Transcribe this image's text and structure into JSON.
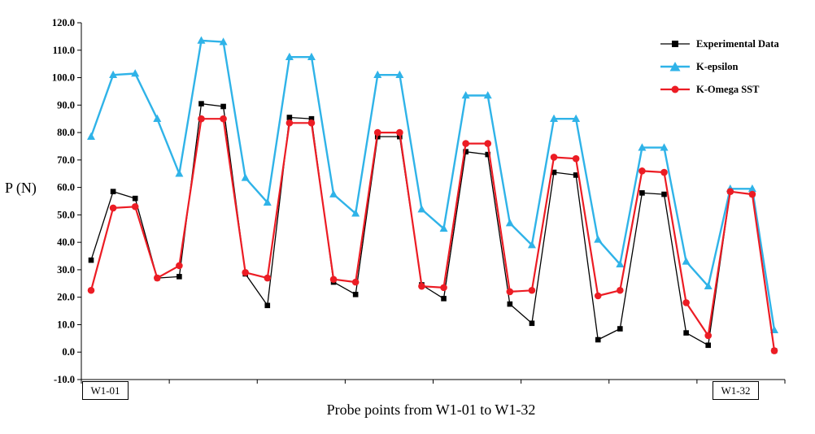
{
  "figure": {
    "y_axis_label": "P (N)",
    "x_axis_title": "Probe points from W1-01 to W1-32",
    "x_first_probe_label": "W1-01",
    "x_last_probe_label": "W1-32"
  },
  "chart_data": {
    "type": "line",
    "title": "",
    "xlabel": "Probe points from W1-01 to W1-32",
    "ylabel": "P (N)",
    "ylim": [
      -10,
      120
    ],
    "ytick_step": 10,
    "ytick_format_decimals": 1,
    "x_count": 32,
    "x_shown_labels": [
      "W1-01",
      "W1-32"
    ],
    "grid": false,
    "legend_position": "top-right-inside",
    "series": [
      {
        "name": "Experimental Data",
        "color": "#000000",
        "marker": "square",
        "line_width": 1.3,
        "values": [
          33.5,
          58.5,
          56.0,
          27.0,
          27.5,
          90.5,
          89.5,
          28.5,
          17.0,
          85.5,
          85.0,
          25.5,
          21.0,
          78.5,
          78.5,
          24.5,
          19.5,
          73.0,
          72.0,
          17.5,
          10.5,
          65.5,
          64.5,
          4.5,
          8.5,
          58.0,
          57.5,
          7.0,
          2.5,
          58.5,
          57.5,
          0.5
        ]
      },
      {
        "name": "K-epsilon",
        "color": "#2fb3e8",
        "marker": "triangle",
        "line_width": 2.4,
        "values": [
          78.5,
          101.0,
          101.5,
          85.0,
          65.0,
          113.5,
          113.0,
          63.5,
          54.5,
          107.5,
          107.5,
          57.5,
          50.5,
          101.0,
          101.0,
          52.0,
          45.0,
          93.5,
          93.5,
          47.0,
          39.0,
          85.0,
          85.0,
          41.0,
          32.0,
          74.5,
          74.5,
          33.0,
          24.0,
          59.5,
          59.5,
          8.0
        ]
      },
      {
        "name": "K-Omega SST",
        "color": "#ec1c24",
        "marker": "circle",
        "line_width": 2.2,
        "values": [
          22.5,
          52.5,
          53.0,
          27.0,
          31.5,
          85.0,
          85.0,
          29.0,
          27.0,
          83.5,
          83.5,
          26.5,
          25.5,
          80.0,
          80.0,
          24.0,
          23.5,
          76.0,
          76.0,
          22.0,
          22.5,
          71.0,
          70.5,
          20.5,
          22.5,
          66.0,
          65.5,
          18.0,
          6.0,
          58.5,
          57.5,
          0.5
        ]
      }
    ]
  }
}
